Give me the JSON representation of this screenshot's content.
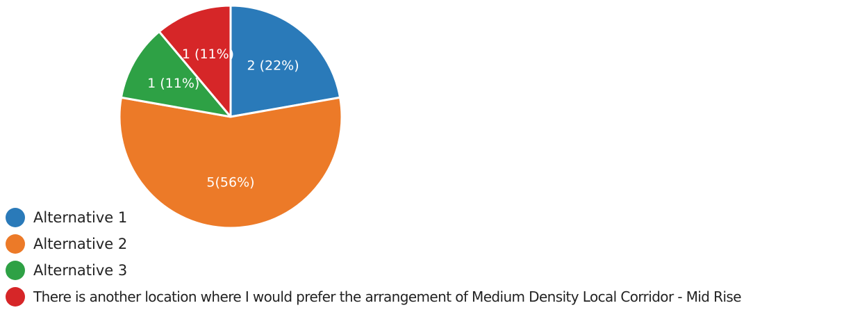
{
  "chart_data": {
    "type": "pie",
    "title": "",
    "slices": [
      {
        "name": "Alternative 1",
        "value": 2,
        "percent": 22,
        "label": "2 (22%)",
        "color": "#2a7ab9"
      },
      {
        "name": "Alternative 2",
        "value": 5,
        "percent": 56,
        "label": "5(56%)",
        "color": "#ec7a28"
      },
      {
        "name": "Alternative 3",
        "value": 1,
        "percent": 11,
        "label": "1 (11%)",
        "color": "#2ea145"
      },
      {
        "name": "There is another location where I would prefer the arrangement of Medium Density Local Corridor - Mid Rise",
        "value": 1,
        "percent": 11,
        "label": "1 (11%)",
        "color": "#d62628"
      }
    ],
    "legend": "bottom-left"
  }
}
